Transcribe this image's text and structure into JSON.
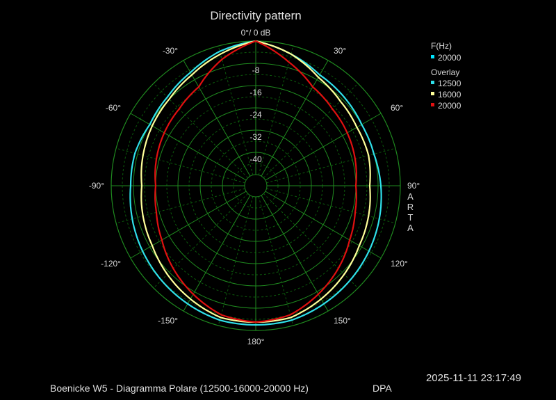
{
  "chart_data": {
    "type": "polar",
    "title": "Directivity pattern",
    "top_label": "0°/ 0 dB",
    "radial_axis": {
      "range_db": [
        -48,
        0
      ],
      "ring_labels": [
        "-8",
        "-16",
        "-24",
        "-32",
        "-40"
      ]
    },
    "angle_labels": [
      {
        "deg": -30,
        "text": "-30°"
      },
      {
        "deg": 30,
        "text": "30°"
      },
      {
        "deg": -60,
        "text": "-60°"
      },
      {
        "deg": 60,
        "text": "60°"
      },
      {
        "deg": -90,
        "text": "-90°"
      },
      {
        "deg": 90,
        "text": "90°"
      },
      {
        "deg": -120,
        "text": "-120°"
      },
      {
        "deg": 120,
        "text": "120°"
      },
      {
        "deg": -150,
        "text": "-150°"
      },
      {
        "deg": 150,
        "text": "150°"
      },
      {
        "deg": 180,
        "text": "180°"
      }
    ],
    "grid": true,
    "legend": {
      "placement": "right",
      "header": "F(Hz)",
      "main_entry": {
        "label": "20000",
        "color": "#00e5ff"
      },
      "overlay_header": "Overlay",
      "overlay_entries": [
        {
          "label": "12500",
          "color": "#2fe0ea"
        },
        {
          "label": "16000",
          "color": "#ffff99"
        },
        {
          "label": "20000",
          "color": "#e01010"
        }
      ]
    },
    "series": [
      {
        "name": "12500",
        "color": "#2fe0ea",
        "angles_deg": [
          0,
          15,
          30,
          45,
          60,
          75,
          90,
          105,
          120,
          135,
          150,
          165,
          180,
          195,
          210,
          225,
          240,
          255,
          270,
          285,
          300,
          315,
          330,
          345
        ],
        "level_db": [
          0,
          -3,
          -6,
          -7,
          -8,
          -8,
          -7,
          -6,
          -5,
          -4,
          -3,
          -2,
          -2,
          -2,
          -3,
          -4,
          -5,
          -6,
          -7,
          -7,
          -8,
          -7,
          -5,
          -2
        ]
      },
      {
        "name": "16000",
        "color": "#ffff99",
        "angles_deg": [
          0,
          15,
          30,
          45,
          60,
          75,
          90,
          105,
          120,
          135,
          150,
          165,
          180,
          195,
          210,
          225,
          240,
          255,
          270,
          285,
          300,
          315,
          330,
          345
        ],
        "level_db": [
          0,
          -3,
          -7,
          -9,
          -10,
          -10,
          -11,
          -10,
          -9,
          -7,
          -5,
          -3,
          -3,
          -3,
          -5,
          -7,
          -9,
          -10,
          -11,
          -10,
          -9,
          -8,
          -6,
          -3
        ]
      },
      {
        "name": "20000",
        "color": "#e01010",
        "angles_deg": [
          0,
          15,
          30,
          45,
          60,
          75,
          90,
          105,
          120,
          135,
          150,
          165,
          180,
          195,
          210,
          225,
          240,
          255,
          270,
          285,
          300,
          315,
          330,
          345
        ],
        "level_db": [
          0,
          -6,
          -11,
          -13,
          -14,
          -15,
          -16,
          -15,
          -13,
          -10,
          -7,
          -4,
          -3,
          -4,
          -7,
          -10,
          -13,
          -15,
          -16,
          -15,
          -14,
          -13,
          -11,
          -5
        ]
      }
    ]
  },
  "side_label": "ARTA",
  "footer": {
    "caption": "Boenicke W5 - Diagramma Polare (12500-16000-20000 Hz)",
    "mode": "DPA",
    "timestamp": "2025-11-11  23:17:49"
  }
}
